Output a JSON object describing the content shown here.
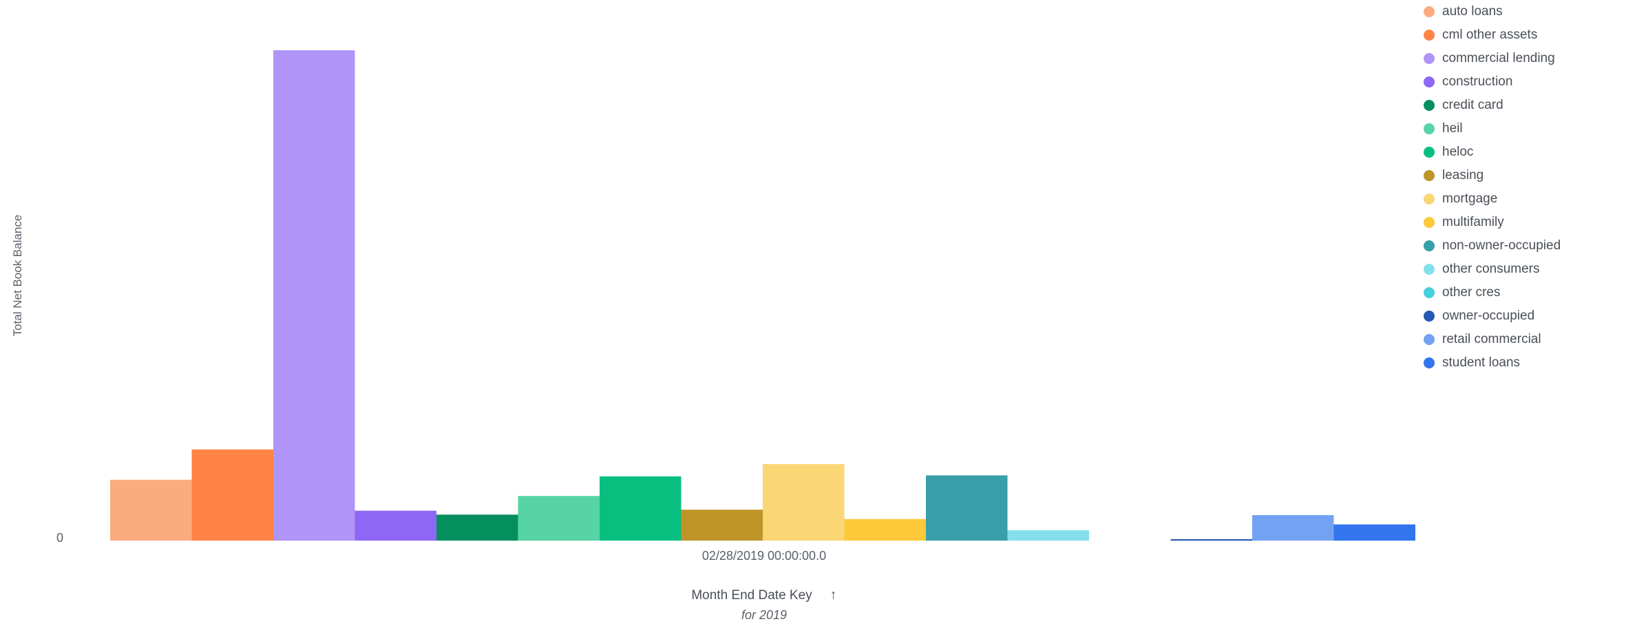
{
  "chart_data": {
    "type": "bar",
    "xlabel": "Month End Date Key",
    "xlabel_sub": "for 2019",
    "ylabel": "Total Net Book Balance",
    "y_tick_labels": [
      "0"
    ],
    "categories": [
      "02/28/2019 00:00:00.0"
    ],
    "ylim": [
      0,
      100
    ],
    "legend_position": "top-right",
    "grid": false,
    "series": [
      {
        "name": "auto loans",
        "color": "#fcaa80",
        "values": [
          12.4
        ]
      },
      {
        "name": "cml other assets",
        "color": "#ff8445",
        "values": [
          18.6
        ]
      },
      {
        "name": "commercial lending",
        "color": "#b094f7",
        "values": [
          100
        ]
      },
      {
        "name": "construction",
        "color": "#8f67f5",
        "values": [
          6.1
        ]
      },
      {
        "name": "credit card",
        "color": "#068f5e",
        "values": [
          5.3
        ]
      },
      {
        "name": "heil",
        "color": "#57d4a6",
        "values": [
          9.1
        ]
      },
      {
        "name": "heloc",
        "color": "#09bf80",
        "values": [
          13.1
        ]
      },
      {
        "name": "leasing",
        "color": "#bf952a",
        "values": [
          6.3
        ]
      },
      {
        "name": "mortgage",
        "color": "#fad675",
        "values": [
          15.6
        ]
      },
      {
        "name": "multifamily",
        "color": "#fcc93a",
        "values": [
          4.4
        ]
      },
      {
        "name": "non-owner-occupied",
        "color": "#379fa8",
        "values": [
          13.3
        ]
      },
      {
        "name": "other consumers",
        "color": "#84dfeb",
        "values": [
          2.1
        ]
      },
      {
        "name": "other cres",
        "color": "#48cfdb",
        "values": [
          0
        ]
      },
      {
        "name": "owner-occupied",
        "color": "#2557b5",
        "values": [
          0.3
        ]
      },
      {
        "name": "retail commercial",
        "color": "#73a2f2",
        "values": [
          5.2
        ]
      },
      {
        "name": "student loans",
        "color": "#3275ef",
        "values": [
          3.3
        ]
      }
    ]
  },
  "icons": {
    "sort": "arrow-up-icon"
  }
}
